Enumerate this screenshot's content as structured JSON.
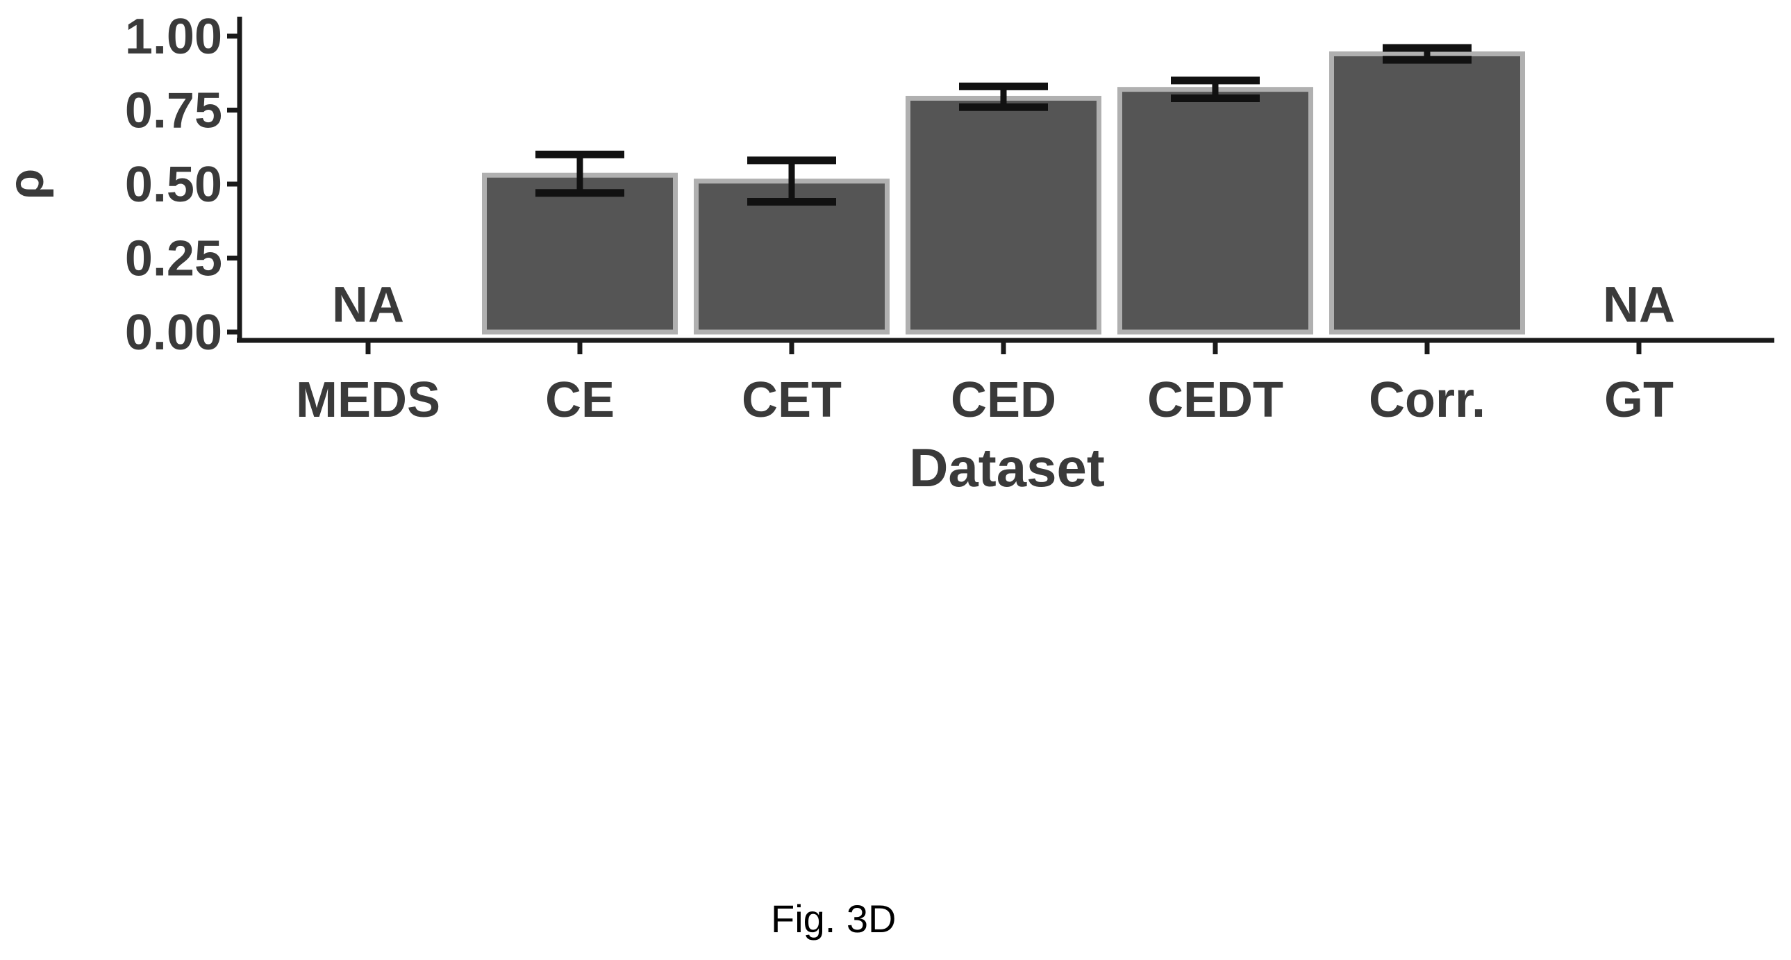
{
  "caption": "Fig. 3D",
  "chart_data": {
    "type": "bar",
    "title": "",
    "xlabel": "Dataset",
    "ylabel": "ρ",
    "categories": [
      "MEDS",
      "CE",
      "CET",
      "CED",
      "CEDT",
      "Corr.",
      "GT"
    ],
    "values": [
      null,
      0.53,
      0.51,
      0.79,
      0.82,
      0.94,
      null
    ],
    "error_low": [
      null,
      0.47,
      0.44,
      0.76,
      0.79,
      0.92,
      null
    ],
    "error_high": [
      null,
      0.6,
      0.58,
      0.83,
      0.85,
      0.96,
      null
    ],
    "missing_label": "NA",
    "ylim": [
      0,
      1
    ],
    "yticks": [
      "0.00",
      "0.25",
      "0.50",
      "0.75",
      "1.00"
    ],
    "grid": false,
    "legend": "none",
    "colors": {
      "bar": "#555555",
      "bar_edge": "#b0b0b0",
      "axis": "#1a1a1a",
      "error_bar": "#111111",
      "text": "#3a3a3a"
    }
  }
}
